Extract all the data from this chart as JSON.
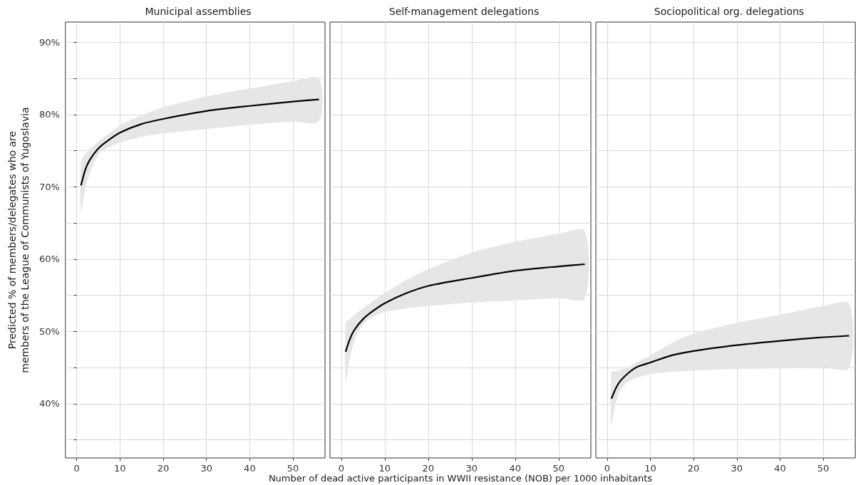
{
  "chart_data": [
    {
      "type": "line",
      "title": "Municipal assemblies",
      "ylabel": "Predicted % of members/delegates who are\nmembers of the League of Communists of Yugoslavia",
      "xlim": [
        -2.6,
        57.4
      ],
      "xticks": [
        0,
        10,
        20,
        30,
        40,
        50
      ],
      "ylim": [
        32.5,
        92.8
      ],
      "yticks": [
        {
          "value": 35,
          "label": null
        },
        {
          "value": 40,
          "label": "40%"
        },
        {
          "value": 45,
          "label": null
        },
        {
          "value": 50,
          "label": "50%"
        },
        {
          "value": 55,
          "label": null
        },
        {
          "value": 60,
          "label": "60%"
        },
        {
          "value": 65,
          "label": null
        },
        {
          "value": 70,
          "label": "70%"
        },
        {
          "value": 75,
          "label": null
        },
        {
          "value": 80,
          "label": "80%"
        },
        {
          "value": 85,
          "label": null
        },
        {
          "value": 90,
          "label": "90%"
        }
      ],
      "grid": true,
      "series": [
        {
          "color": "#000000",
          "x": [
            1,
            2,
            3,
            5,
            7,
            10,
            15,
            20,
            30,
            40,
            50,
            56
          ],
          "values": [
            70.2,
            72.4,
            73.7,
            75.3,
            76.3,
            77.5,
            78.7,
            79.4,
            80.5,
            81.2,
            81.8,
            82.1
          ],
          "lower": [
            66.7,
            69.7,
            71.8,
            74.4,
            75.4,
            76.1,
            76.9,
            77.4,
            78.0,
            78.6,
            79.0,
            79.1
          ],
          "upper": [
            73.5,
            74.6,
            75.2,
            76.3,
            77.2,
            78.5,
            79.9,
            81.0,
            82.5,
            83.6,
            84.6,
            85.0
          ]
        }
      ]
    },
    {
      "type": "line",
      "title": "Self-management delegations",
      "xlabel": "Number of dead active participants in WWII resistance (NOB) per 1000 inhabitants",
      "tick_labels": "x",
      "xlim": [
        -2.6,
        57.4
      ],
      "xticks": [
        0,
        10,
        20,
        30,
        40,
        50
      ],
      "ylim": [
        32.5,
        92.8
      ],
      "yticks": [
        {
          "value": 35,
          "label": null
        },
        {
          "value": 40,
          "label": null
        },
        {
          "value": 45,
          "label": null
        },
        {
          "value": 50,
          "label": null
        },
        {
          "value": 55,
          "label": null
        },
        {
          "value": 60,
          "label": null
        },
        {
          "value": 65,
          "label": null
        },
        {
          "value": 70,
          "label": null
        },
        {
          "value": 75,
          "label": null
        },
        {
          "value": 80,
          "label": null
        },
        {
          "value": 85,
          "label": null
        },
        {
          "value": 90,
          "label": null
        }
      ],
      "grid": true,
      "series": [
        {
          "color": "#000000",
          "x": [
            1,
            2,
            3,
            5,
            7,
            10,
            15,
            20,
            30,
            40,
            50,
            56
          ],
          "values": [
            47.2,
            49.0,
            50.2,
            51.7,
            52.7,
            53.9,
            55.3,
            56.3,
            57.4,
            58.4,
            59.0,
            59.3
          ],
          "lower": [
            43.1,
            46.4,
            48.7,
            51.0,
            51.9,
            52.7,
            53.2,
            53.5,
            54.0,
            54.3,
            54.6,
            54.6
          ],
          "upper": [
            51.2,
            51.7,
            52.3,
            53.2,
            54.1,
            55.3,
            57.1,
            58.6,
            60.9,
            62.4,
            63.5,
            63.9
          ]
        }
      ]
    },
    {
      "type": "line",
      "title": "Sociopolitical org. delegations",
      "tick_labels": "x",
      "xlim": [
        -2.6,
        57.4
      ],
      "xticks": [
        0,
        10,
        20,
        30,
        40,
        50
      ],
      "ylim": [
        32.5,
        92.8
      ],
      "yticks": [
        {
          "value": 35,
          "label": null
        },
        {
          "value": 40,
          "label": null
        },
        {
          "value": 45,
          "label": null
        },
        {
          "value": 50,
          "label": null
        },
        {
          "value": 55,
          "label": null
        },
        {
          "value": 60,
          "label": null
        },
        {
          "value": 65,
          "label": null
        },
        {
          "value": 70,
          "label": null
        },
        {
          "value": 75,
          "label": null
        },
        {
          "value": 80,
          "label": null
        },
        {
          "value": 85,
          "label": null
        },
        {
          "value": 90,
          "label": null
        }
      ],
      "grid": true,
      "series": [
        {
          "color": "#000000",
          "x": [
            1,
            2,
            3,
            5,
            7,
            10,
            15,
            20,
            30,
            40,
            50,
            56
          ],
          "values": [
            40.7,
            42.1,
            43.1,
            44.3,
            45.1,
            45.7,
            46.7,
            47.3,
            48.1,
            48.7,
            49.2,
            49.4
          ],
          "lower": [
            37.0,
            40.1,
            41.8,
            43.1,
            43.6,
            44.1,
            44.4,
            44.6,
            44.8,
            44.9,
            45.0,
            45.0
          ],
          "upper": [
            44.3,
            44.5,
            44.7,
            45.1,
            45.8,
            46.7,
            48.4,
            49.7,
            51.2,
            52.3,
            53.5,
            53.8
          ]
        }
      ]
    }
  ]
}
